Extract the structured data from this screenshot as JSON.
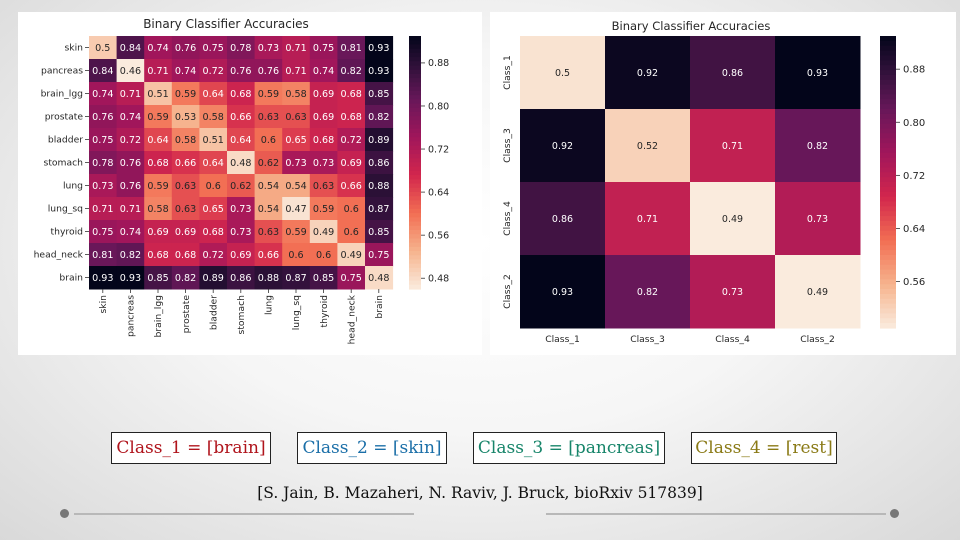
{
  "colors": {
    "cmap_low": "#faebdd",
    "cmap_high": "#03051a",
    "class1_text": "#b0141c",
    "class2_text": "#1b6fa8",
    "class3_text": "#17856a",
    "class4_text": "#8a7a16"
  },
  "chart_data": [
    {
      "type": "heatmap",
      "title": "Binary Classifier Accuracies",
      "row_labels": [
        "skin",
        "pancreas",
        "brain_lgg",
        "prostate",
        "bladder",
        "stomach",
        "lung",
        "lung_sq",
        "thyroid",
        "head_neck",
        "brain"
      ],
      "col_labels": [
        "skin",
        "pancreas",
        "brain_lgg",
        "prostate",
        "bladder",
        "stomach",
        "lung",
        "lung_sq",
        "thyroid",
        "head_neck",
        "brain"
      ],
      "values": [
        [
          0.5,
          0.84,
          0.74,
          0.76,
          0.75,
          0.78,
          0.73,
          0.71,
          0.75,
          0.81,
          0.93
        ],
        [
          0.84,
          0.46,
          0.71,
          0.74,
          0.72,
          0.76,
          0.76,
          0.71,
          0.74,
          0.82,
          0.93
        ],
        [
          0.74,
          0.71,
          0.51,
          0.59,
          0.64,
          0.68,
          0.59,
          0.58,
          0.69,
          0.68,
          0.85
        ],
        [
          0.76,
          0.74,
          0.59,
          0.53,
          0.58,
          0.66,
          0.63,
          0.63,
          0.69,
          0.68,
          0.82
        ],
        [
          0.75,
          0.72,
          0.64,
          0.58,
          0.51,
          0.64,
          0.6,
          0.65,
          0.68,
          0.72,
          0.89
        ],
        [
          0.78,
          0.76,
          0.68,
          0.66,
          0.64,
          0.48,
          0.62,
          0.73,
          0.73,
          0.69,
          0.86
        ],
        [
          0.73,
          0.76,
          0.59,
          0.63,
          0.6,
          0.62,
          0.54,
          0.54,
          0.63,
          0.66,
          0.88
        ],
        [
          0.71,
          0.71,
          0.58,
          0.63,
          0.65,
          0.73,
          0.54,
          0.47,
          0.59,
          0.6,
          0.87
        ],
        [
          0.75,
          0.74,
          0.69,
          0.69,
          0.68,
          0.73,
          0.63,
          0.59,
          0.49,
          0.6,
          0.85
        ],
        [
          0.81,
          0.82,
          0.68,
          0.68,
          0.72,
          0.69,
          0.66,
          0.6,
          0.6,
          0.49,
          0.75
        ],
        [
          0.93,
          0.93,
          0.85,
          0.82,
          0.89,
          0.86,
          0.88,
          0.87,
          0.85,
          0.75,
          0.48
        ]
      ],
      "value_labels": [
        [
          "0.5",
          "0.84",
          "0.74",
          "0.76",
          "0.75",
          "0.78",
          "0.73",
          "0.71",
          "0.75",
          "0.81",
          "0.93"
        ],
        [
          "0.84",
          "0.46",
          "0.71",
          "0.74",
          "0.72",
          "0.76",
          "0.76",
          "0.71",
          "0.74",
          "0.82",
          "0.93"
        ],
        [
          "0.74",
          "0.71",
          "0.51",
          "0.59",
          "0.64",
          "0.68",
          "0.59",
          "0.58",
          "0.69",
          "0.68",
          "0.85"
        ],
        [
          "0.76",
          "0.74",
          "0.59",
          "0.53",
          "0.58",
          "0.66",
          "0.63",
          "0.63",
          "0.69",
          "0.68",
          "0.82"
        ],
        [
          "0.75",
          "0.72",
          "0.64",
          "0.58",
          "0.51",
          "0.64",
          "0.6",
          "0.65",
          "0.68",
          "0.72",
          "0.89"
        ],
        [
          "0.78",
          "0.76",
          "0.68",
          "0.66",
          "0.64",
          "0.48",
          "0.62",
          "0.73",
          "0.73",
          "0.69",
          "0.86"
        ],
        [
          "0.73",
          "0.76",
          "0.59",
          "0.63",
          "0.6",
          "0.62",
          "0.54",
          "0.54",
          "0.63",
          "0.66",
          "0.88"
        ],
        [
          "0.71",
          "0.71",
          "0.58",
          "0.63",
          "0.65",
          "0.73",
          "0.54",
          "0.47",
          "0.59",
          "0.6",
          "0.87"
        ],
        [
          "0.75",
          "0.74",
          "0.69",
          "0.69",
          "0.68",
          "0.73",
          "0.63",
          "0.59",
          "0.49",
          "0.6",
          "0.85"
        ],
        [
          "0.81",
          "0.82",
          "0.68",
          "0.68",
          "0.72",
          "0.69",
          "0.66",
          "0.6",
          "0.6",
          "0.49",
          "0.75"
        ],
        [
          "0.93",
          "0.93",
          "0.85",
          "0.82",
          "0.89",
          "0.86",
          "0.88",
          "0.87",
          "0.85",
          "0.75",
          "0.48"
        ]
      ],
      "colorbar": {
        "range": [
          0.46,
          0.93
        ],
        "ticks": [
          0.48,
          0.56,
          0.64,
          0.72,
          0.8,
          0.88
        ],
        "tick_labels": [
          "0.48",
          "0.56",
          "0.64",
          "0.72",
          "0.80",
          "0.88"
        ]
      }
    },
    {
      "type": "heatmap",
      "title": "Binary Classifier Accuracies",
      "row_labels": [
        "Class_1",
        "Class_3",
        "Class_4",
        "Class_2"
      ],
      "col_labels": [
        "Class_1",
        "Class_3",
        "Class_4",
        "Class_2"
      ],
      "values": [
        [
          0.5,
          0.92,
          0.86,
          0.93
        ],
        [
          0.92,
          0.52,
          0.71,
          0.82
        ],
        [
          0.86,
          0.71,
          0.49,
          0.73
        ],
        [
          0.93,
          0.82,
          0.73,
          0.49
        ]
      ],
      "value_labels": [
        [
          "0.5",
          "0.92",
          "0.86",
          "0.93"
        ],
        [
          "0.92",
          "0.52",
          "0.71",
          "0.82"
        ],
        [
          "0.86",
          "0.71",
          "0.49",
          "0.73"
        ],
        [
          "0.93",
          "0.82",
          "0.73",
          "0.49"
        ]
      ],
      "colorbar": {
        "range": [
          0.49,
          0.93
        ],
        "ticks": [
          0.56,
          0.64,
          0.72,
          0.8,
          0.88
        ],
        "tick_labels": [
          "0.56",
          "0.64",
          "0.72",
          "0.80",
          "0.88"
        ]
      }
    }
  ],
  "legend": {
    "class1": "Class_1 = [brain]",
    "class2": "Class_2 = [skin]",
    "class3": "Class_3 = [pancreas]",
    "class4": "Class_4 = [rest]"
  },
  "citation": "[S. Jain, B. Mazaheri, N. Raviv, J. Bruck, bioRxiv 517839]"
}
